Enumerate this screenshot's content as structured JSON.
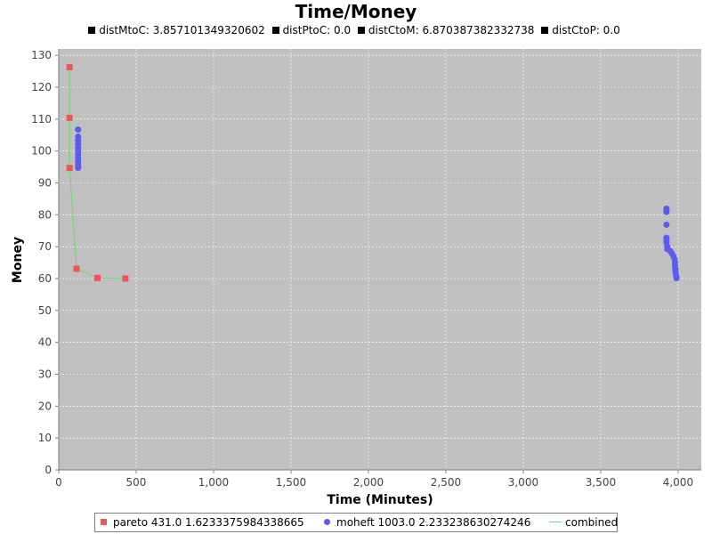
{
  "chart_data": {
    "type": "scatter",
    "title": "Time/Money",
    "subtitle": [
      {
        "label": "distMtoC: 3.857101349320602"
      },
      {
        "label": "distPtoC: 0.0"
      },
      {
        "label": "distCtoM: 6.870387382332738"
      },
      {
        "label": "distCtoP: 0.0"
      }
    ],
    "xlabel": "Time (Minutes)",
    "ylabel": "Money",
    "xlim": [
      0,
      4150
    ],
    "ylim": [
      0,
      132
    ],
    "xticks": [
      {
        "value": 0,
        "label": "0"
      },
      {
        "value": 500,
        "label": "500"
      },
      {
        "value": 1000,
        "label": "1,000"
      },
      {
        "value": 1500,
        "label": "1,500"
      },
      {
        "value": 2000,
        "label": "2,000"
      },
      {
        "value": 2500,
        "label": "2,500"
      },
      {
        "value": 3000,
        "label": "3,000"
      },
      {
        "value": 3500,
        "label": "3,500"
      },
      {
        "value": 4000,
        "label": "4,000"
      }
    ],
    "yticks": [
      {
        "value": 0,
        "label": "0"
      },
      {
        "value": 10,
        "label": "10"
      },
      {
        "value": 20,
        "label": "20"
      },
      {
        "value": 30,
        "label": "30"
      },
      {
        "value": 40,
        "label": "40"
      },
      {
        "value": 50,
        "label": "50"
      },
      {
        "value": 60,
        "label": "60"
      },
      {
        "value": 70,
        "label": "70"
      },
      {
        "value": 80,
        "label": "80"
      },
      {
        "value": 90,
        "label": "90"
      },
      {
        "value": 100,
        "label": "100"
      },
      {
        "value": 110,
        "label": "110"
      },
      {
        "value": 120,
        "label": "120"
      },
      {
        "value": 130,
        "label": "130"
      }
    ],
    "grid": true,
    "legend_position": "bottom",
    "background": "#c0c0c0",
    "series": [
      {
        "name": "pareto 431.0 1.6233375984338665",
        "marker": "square",
        "color": "#f05555",
        "points": [
          [
            70,
            126.3
          ],
          [
            70,
            110.4
          ],
          [
            70,
            94.7
          ],
          [
            115,
            63.1
          ],
          [
            250,
            60.2
          ],
          [
            430,
            60.0
          ]
        ]
      },
      {
        "name": "moheft 1003.0 2.233238630274246",
        "marker": "circle",
        "color": "#5b5bf0",
        "points": [
          [
            125,
            106.7
          ],
          [
            125,
            104.5
          ],
          [
            125,
            103.3
          ],
          [
            125,
            102.2
          ],
          [
            125,
            101.1
          ],
          [
            125,
            100.0
          ],
          [
            125,
            98.9
          ],
          [
            125,
            97.8
          ],
          [
            125,
            96.7
          ],
          [
            125,
            95.6
          ],
          [
            125,
            94.7
          ],
          [
            3925,
            81.9
          ],
          [
            3925,
            81.4
          ],
          [
            3925,
            80.9
          ],
          [
            3925,
            76.9
          ],
          [
            3925,
            72.8
          ],
          [
            3925,
            72.1
          ],
          [
            3925,
            71.4
          ],
          [
            3930,
            70.1
          ],
          [
            3930,
            69.2
          ],
          [
            3950,
            68.6
          ],
          [
            3960,
            67.8
          ],
          [
            3970,
            67.0
          ],
          [
            3978,
            66.0
          ],
          [
            3980,
            65.0
          ],
          [
            3980,
            64.1
          ],
          [
            3982,
            63.2
          ],
          [
            3983,
            62.3
          ],
          [
            3985,
            61.4
          ],
          [
            3988,
            60.5
          ],
          [
            3990,
            60.1
          ]
        ]
      },
      {
        "name": "combined",
        "marker": "line",
        "color": "#66dd66",
        "points": [
          [
            70,
            126.3
          ],
          [
            70,
            110.4
          ],
          [
            70,
            94.7
          ],
          [
            115,
            63.1
          ],
          [
            250,
            60.2
          ],
          [
            430,
            60.0
          ]
        ]
      }
    ]
  }
}
